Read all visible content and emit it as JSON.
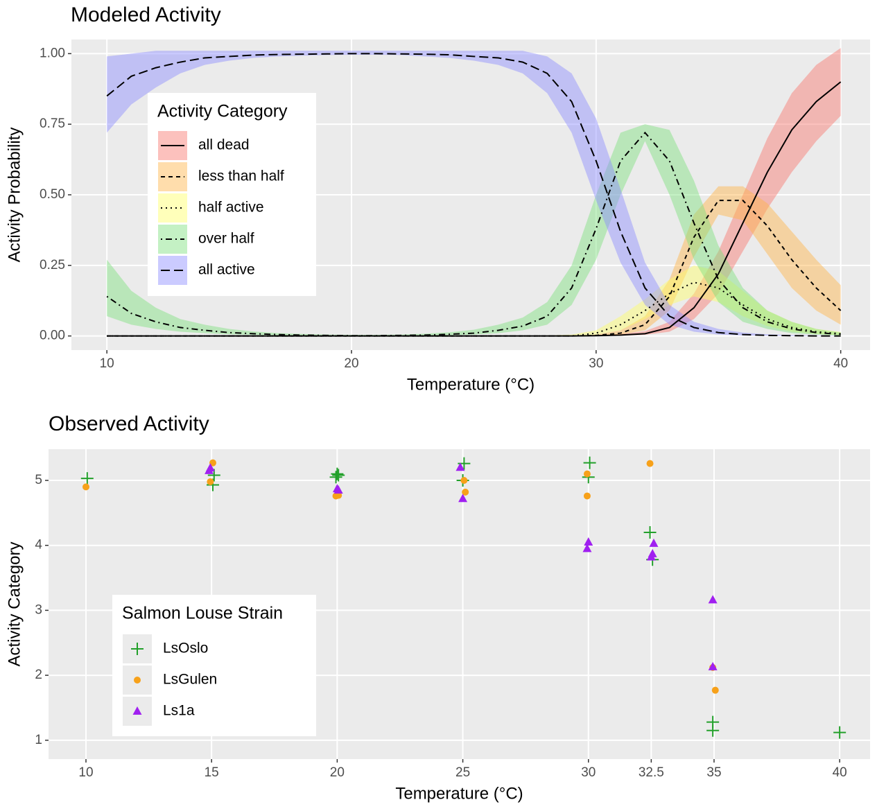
{
  "chart_data": [
    {
      "type": "line",
      "title": "Modeled Activity",
      "x_label": "Temperature (°C)",
      "y_label": "Activity Probability",
      "legend_title": "Activity Category",
      "legend_position": "top-left",
      "grid": true,
      "line_color": "#000000",
      "xlim": [
        8.55,
        41.2
      ],
      "ylim": [
        -0.05,
        1.05
      ],
      "xticks": [
        10,
        20,
        30,
        40
      ],
      "yticks": [
        {
          "value": 0,
          "label": "0.00"
        },
        {
          "value": 0.25,
          "label": "0.25"
        },
        {
          "value": 0.5,
          "label": "0.50"
        },
        {
          "value": 0.75,
          "label": "0.75"
        },
        {
          "value": 1,
          "label": "1.00"
        }
      ],
      "x": [
        10,
        11,
        12,
        13,
        14,
        15,
        16,
        17,
        18,
        19,
        20,
        21,
        22,
        23,
        24,
        25,
        26,
        27,
        28,
        29,
        30,
        31,
        32,
        33,
        34,
        35,
        36,
        37,
        38,
        39,
        40
      ],
      "series": [
        {
          "name": "all dead",
          "color": "#F8766D",
          "linetype": "solid",
          "values": [
            0,
            0,
            0,
            0,
            0,
            0,
            0,
            0,
            0,
            0,
            0,
            0,
            0,
            0,
            0,
            0,
            0,
            0,
            0,
            0,
            0.001,
            0.003,
            0.008,
            0.03,
            0.1,
            0.22,
            0.4,
            0.58,
            0.73,
            0.83,
            0.9
          ],
          "lower": [
            0,
            0,
            0,
            0,
            0,
            0,
            0,
            0,
            0,
            0,
            0,
            0,
            0,
            0,
            0,
            0,
            0,
            0,
            0,
            0,
            0,
            0.001,
            0.004,
            0.015,
            0.06,
            0.15,
            0.3,
            0.45,
            0.58,
            0.69,
            0.78
          ],
          "upper": [
            0,
            0,
            0,
            0,
            0,
            0,
            0,
            0,
            0,
            0,
            0,
            0,
            0,
            0,
            0,
            0,
            0,
            0,
            0,
            0,
            0.003,
            0.007,
            0.017,
            0.05,
            0.15,
            0.3,
            0.5,
            0.7,
            0.86,
            0.96,
            1.02
          ]
        },
        {
          "name": "less than half",
          "color": "#FFB347",
          "linetype": "dashed",
          "values": [
            0,
            0,
            0,
            0,
            0,
            0,
            0,
            0,
            0,
            0,
            0,
            0,
            0,
            0,
            0,
            0,
            0,
            0,
            0,
            0,
            0.002,
            0.01,
            0.04,
            0.14,
            0.35,
            0.48,
            0.48,
            0.39,
            0.27,
            0.17,
            0.09
          ],
          "lower": [
            0,
            0,
            0,
            0,
            0,
            0,
            0,
            0,
            0,
            0,
            0,
            0,
            0,
            0,
            0,
            0,
            0,
            0,
            0,
            0,
            0,
            0.005,
            0.02,
            0.09,
            0.28,
            0.43,
            0.41,
            0.29,
            0.17,
            0.09,
            0.04
          ],
          "upper": [
            0,
            0,
            0,
            0,
            0,
            0,
            0,
            0,
            0,
            0,
            0,
            0,
            0,
            0,
            0,
            0,
            0,
            0,
            0,
            0,
            0.005,
            0.02,
            0.07,
            0.2,
            0.43,
            0.53,
            0.53,
            0.47,
            0.37,
            0.27,
            0.18
          ]
        },
        {
          "name": "half active",
          "color": "#FFFF66",
          "linetype": "dotted",
          "values": [
            0,
            0,
            0,
            0,
            0,
            0,
            0,
            0,
            0,
            0,
            0,
            0,
            0,
            0,
            0,
            0,
            0,
            0,
            0,
            0,
            0.01,
            0.04,
            0.09,
            0.15,
            0.19,
            0.17,
            0.11,
            0.06,
            0.03,
            0.015,
            0.008
          ],
          "lower": [
            0,
            0,
            0,
            0,
            0,
            0,
            0,
            0,
            0,
            0,
            0,
            0,
            0,
            0,
            0,
            0,
            0,
            0,
            0,
            0,
            0.005,
            0.02,
            0.06,
            0.11,
            0.14,
            0.12,
            0.07,
            0.035,
            0.015,
            0.007,
            0.003
          ],
          "upper": [
            0,
            0,
            0,
            0,
            0,
            0,
            0,
            0,
            0,
            0,
            0,
            0,
            0,
            0,
            0,
            0,
            0,
            0,
            0.002,
            0.005,
            0.02,
            0.07,
            0.13,
            0.2,
            0.25,
            0.23,
            0.16,
            0.09,
            0.05,
            0.025,
            0.014
          ]
        },
        {
          "name": "over half",
          "color": "#7CE07C",
          "linetype": "dotdash",
          "values": [
            0.14,
            0.08,
            0.05,
            0.03,
            0.02,
            0.012,
            0.008,
            0.005,
            0.003,
            0.002,
            0.001,
            0.001,
            0.002,
            0.003,
            0.006,
            0.01,
            0.02,
            0.035,
            0.07,
            0.17,
            0.38,
            0.62,
            0.72,
            0.62,
            0.4,
            0.2,
            0.1,
            0.05,
            0.025,
            0.012,
            0.006
          ],
          "lower": [
            0.07,
            0.04,
            0.025,
            0.015,
            0.01,
            0.006,
            0.004,
            0.002,
            0.001,
            0.001,
            0,
            0,
            0.001,
            0.001,
            0.003,
            0.005,
            0.01,
            0.02,
            0.04,
            0.11,
            0.27,
            0.5,
            0.69,
            0.5,
            0.27,
            0.12,
            0.05,
            0.025,
            0.01,
            0.005,
            0.002
          ],
          "upper": [
            0.27,
            0.16,
            0.1,
            0.06,
            0.04,
            0.025,
            0.016,
            0.01,
            0.007,
            0.005,
            0.004,
            0.004,
            0.005,
            0.008,
            0.013,
            0.022,
            0.04,
            0.065,
            0.12,
            0.25,
            0.5,
            0.72,
            0.75,
            0.73,
            0.55,
            0.32,
            0.17,
            0.09,
            0.05,
            0.025,
            0.012
          ]
        },
        {
          "name": "all active",
          "color": "#8C8CFF",
          "linetype": "longdash",
          "values": [
            0.85,
            0.92,
            0.95,
            0.97,
            0.985,
            0.99,
            0.995,
            0.997,
            0.998,
            0.999,
            1,
            1,
            0.999,
            0.998,
            0.996,
            0.99,
            0.985,
            0.97,
            0.93,
            0.83,
            0.62,
            0.37,
            0.17,
            0.07,
            0.03,
            0.012,
            0.005,
            0.002,
            0.001,
            0,
            0
          ],
          "lower": [
            0.72,
            0.82,
            0.88,
            0.93,
            0.96,
            0.975,
            0.985,
            0.99,
            0.993,
            0.995,
            0.996,
            0.996,
            0.995,
            0.99,
            0.985,
            0.975,
            0.96,
            0.93,
            0.86,
            0.72,
            0.48,
            0.26,
            0.11,
            0.04,
            0.015,
            0.005,
            0.002,
            0.001,
            0,
            0,
            0
          ],
          "upper": [
            0.99,
            1,
            1.01,
            1.01,
            1.01,
            1.01,
            1.01,
            1.01,
            1.01,
            1.01,
            1.01,
            1.01,
            1.01,
            1.01,
            1.01,
            1.01,
            1.01,
            1.01,
            0.99,
            0.93,
            0.77,
            0.52,
            0.26,
            0.11,
            0.05,
            0.025,
            0.012,
            0.006,
            0.003,
            0.002,
            0.001
          ]
        }
      ]
    },
    {
      "type": "scatter",
      "title": "Observed Activity",
      "x_label": "Temperature (°C)",
      "y_label": "Activity Category",
      "legend_title": "Salmon Louse Strain",
      "legend_position": "bottom-left",
      "grid": true,
      "xlim": [
        8.51,
        41.21
      ],
      "ylim": [
        0.71,
        5.48
      ],
      "xticks": [
        10,
        15,
        20,
        25,
        30,
        32.5,
        35,
        40
      ],
      "yticks": [
        1,
        2,
        3,
        4,
        5
      ],
      "series": [
        {
          "name": "LsOslo",
          "color": "#22A02A",
          "marker": "plus",
          "x": [
            10.05,
            15.1,
            15.05,
            20,
            19.95,
            20.05,
            25,
            25.05,
            30.05,
            30,
            32.45,
            32.55,
            34.95,
            34.95,
            40
          ],
          "values": [
            5.03,
            5.08,
            4.93,
            5.1,
            5.05,
            5.08,
            5.0,
            5.26,
            5.27,
            5.05,
            4.2,
            3.78,
            1.28,
            1.15,
            1.12
          ]
        },
        {
          "name": "LsGulen",
          "color": "#F7A11A",
          "marker": "circle",
          "x": [
            10,
            15.05,
            14.95,
            19.95,
            20.05,
            25.05,
            25.1,
            29.95,
            29.95,
            32.45,
            35.05,
            34.95
          ],
          "values": [
            4.9,
            5.27,
            4.98,
            4.76,
            4.77,
            5.0,
            4.82,
            5.1,
            4.76,
            5.26,
            1.77,
            2.12
          ]
        },
        {
          "name": "Ls1a",
          "color": "#A020F0",
          "marker": "triangle",
          "x": [
            14.9,
            14.95,
            20,
            20.05,
            24.9,
            25,
            30,
            29.95,
            32.6,
            32.55,
            32.5,
            34.95,
            34.95
          ],
          "values": [
            5.15,
            5.19,
            4.87,
            4.85,
            5.2,
            4.72,
            4.05,
            3.95,
            4.03,
            3.87,
            3.82,
            3.16,
            2.13
          ]
        }
      ]
    }
  ]
}
